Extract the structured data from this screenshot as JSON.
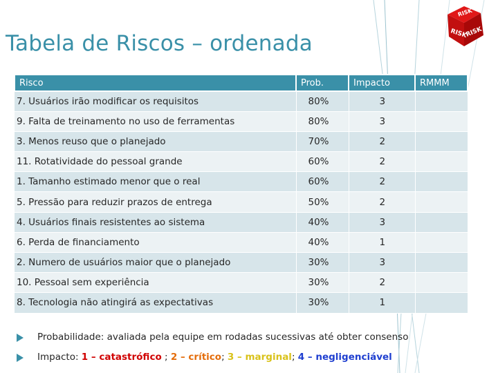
{
  "slide": {
    "title": "Tabela de Riscos – ordenada",
    "logo_icon": "risk-cube-icon",
    "accent_color": "#3a90a8"
  },
  "table": {
    "headers": [
      "Risco",
      "Prob.",
      "Impacto",
      "RMMM"
    ],
    "rows": [
      {
        "risk": "7. Usuários irão modificar os requisitos",
        "prob": "80%",
        "impact": "3",
        "rmmm": ""
      },
      {
        "risk": "9. Falta de treinamento no uso de ferramentas",
        "prob": "80%",
        "impact": "3",
        "rmmm": ""
      },
      {
        "risk": "3. Menos reuso que o planejado",
        "prob": "70%",
        "impact": "2",
        "rmmm": ""
      },
      {
        "risk": "11. Rotatividade do pessoal grande",
        "prob": "60%",
        "impact": "2",
        "rmmm": ""
      },
      {
        "risk": "1. Tamanho estimado menor que o real",
        "prob": "60%",
        "impact": "2",
        "rmmm": ""
      },
      {
        "risk": "5. Pressão para reduzir prazos de entrega",
        "prob": "50%",
        "impact": "2",
        "rmmm": ""
      },
      {
        "risk": "4. Usuários finais resistentes ao sistema",
        "prob": "40%",
        "impact": "3",
        "rmmm": ""
      },
      {
        "risk": "6. Perda de financiamento",
        "prob": "40%",
        "impact": "1",
        "rmmm": ""
      },
      {
        "risk": "2. Numero de usuários maior que o planejado",
        "prob": "30%",
        "impact": "3",
        "rmmm": ""
      },
      {
        "risk": "10. Pessoal sem experiência",
        "prob": "30%",
        "impact": "2",
        "rmmm": ""
      },
      {
        "risk": "8. Tecnologia não atingirá as expectativas",
        "prob": "30%",
        "impact": "1",
        "rmmm": ""
      }
    ]
  },
  "notes": {
    "probabilidade": "Probabilidade: avaliada pela equipe em rodadas sucessivas até obter consenso",
    "impacto_label": "Impacto: ",
    "impacto_1": "1 – catastrófico",
    "sep_1": " ; ",
    "impacto_2": "2 – crítico",
    "sep_2": "; ",
    "impacto_3": "3 – marginal",
    "sep_3": "; ",
    "impacto_4": "4 – negligenciável",
    "colors": {
      "catastrofico": "#d00000",
      "critico": "#e46c0a",
      "marginal": "#d9c21a",
      "negligenciavel": "#1f3fd0"
    }
  }
}
